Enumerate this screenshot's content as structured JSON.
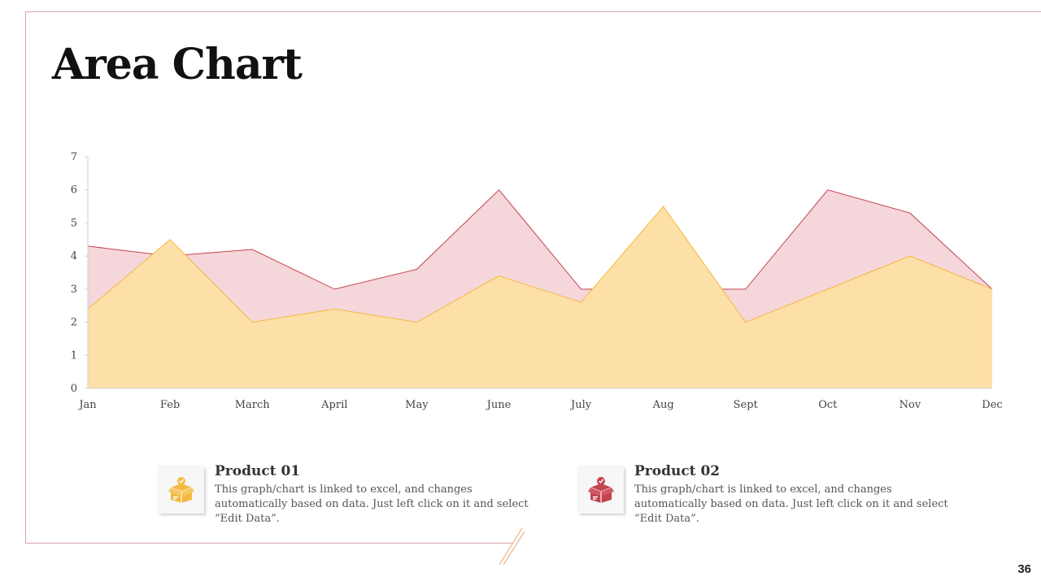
{
  "slide": {
    "title": "Area Chart",
    "page_number": "36"
  },
  "colors": {
    "product01_fill": "#fddfa8",
    "product01_line": "#f4b942",
    "product02_fill": "#f5d6da",
    "product02_line": "#c4444e",
    "frame": "#d9a4a8"
  },
  "legend": [
    {
      "name": "Product 01",
      "description": "This graph/chart is linked to excel, and changes automatically based on data. Just left click on it and select “Edit Data”.",
      "icon": "box-icon",
      "color": "#f4b942"
    },
    {
      "name": "Product 02",
      "description": "This graph/chart is linked to excel, and changes automatically based on data. Just left click on it and select “Edit Data”.",
      "icon": "box-icon",
      "color": "#c4444e"
    }
  ],
  "chart_data": {
    "type": "area",
    "title": "",
    "xlabel": "",
    "ylabel": "",
    "categories": [
      "Jan",
      "Feb",
      "March",
      "April",
      "May",
      "June",
      "July",
      "Aug",
      "Sept",
      "Oct",
      "Nov",
      "Dec"
    ],
    "ylim": [
      0,
      7
    ],
    "yticks": [
      0,
      1,
      2,
      3,
      4,
      5,
      6,
      7
    ],
    "grid": false,
    "series": [
      {
        "name": "Product 02",
        "color": "#c4444e",
        "fill": "#f5d6da",
        "values": [
          4.3,
          4.0,
          4.2,
          3.0,
          3.6,
          6.0,
          3.0,
          3.0,
          3.0,
          6.0,
          5.3,
          3.0
        ]
      },
      {
        "name": "Product 01",
        "color": "#f4b942",
        "fill": "#fddfa8",
        "values": [
          2.4,
          4.5,
          2.0,
          2.4,
          2.0,
          3.4,
          2.6,
          5.5,
          2.0,
          3.0,
          4.0,
          3.0
        ]
      }
    ]
  }
}
